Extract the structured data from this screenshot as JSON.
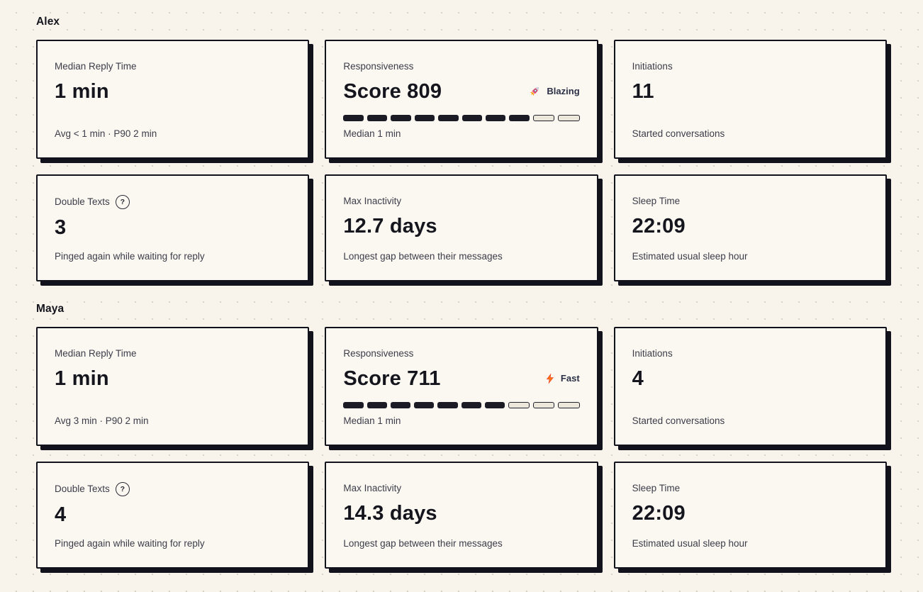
{
  "theme": {
    "page_bg": "#f8f4eb",
    "dot_color": "#d7d3c7",
    "card_bg": "#fbf8f1",
    "ink": "#15151e",
    "muted": "#3c3c49",
    "border_shadow": "#12121c",
    "rocket_icon_color": "#e8507a",
    "lightning_icon_color": "#f97316",
    "help_glyph": "?"
  },
  "sections": [
    {
      "name": "Alex",
      "cards": {
        "median_reply": {
          "label": "Median Reply Time",
          "value": "1 min",
          "subtext": "Avg < 1 min · P90 2 min"
        },
        "responsiveness": {
          "label": "Responsiveness",
          "value": "Score 809",
          "badge": {
            "icon": "rocket-icon",
            "label": "Blazing"
          },
          "segments": {
            "total": 10,
            "filled": 8
          },
          "subtext": "Median 1 min"
        },
        "initiations": {
          "label": "Initiations",
          "value": "11",
          "subtext": "Started conversations"
        },
        "double_texts": {
          "label": "Double Texts",
          "value": "3",
          "subtext": "Pinged again while waiting for reply"
        },
        "max_inactivity": {
          "label": "Max Inactivity",
          "value": "12.7 days",
          "subtext": "Longest gap between their messages"
        },
        "sleep_time": {
          "label": "Sleep Time",
          "value": "22:09",
          "subtext": "Estimated usual sleep hour"
        }
      }
    },
    {
      "name": "Maya",
      "cards": {
        "median_reply": {
          "label": "Median Reply Time",
          "value": "1 min",
          "subtext": "Avg 3 min · P90 2 min"
        },
        "responsiveness": {
          "label": "Responsiveness",
          "value": "Score 711",
          "badge": {
            "icon": "lightning-icon",
            "label": "Fast"
          },
          "segments": {
            "total": 10,
            "filled": 7
          },
          "subtext": "Median 1 min"
        },
        "initiations": {
          "label": "Initiations",
          "value": "4",
          "subtext": "Started conversations"
        },
        "double_texts": {
          "label": "Double Texts",
          "value": "4",
          "subtext": "Pinged again while waiting for reply"
        },
        "max_inactivity": {
          "label": "Max Inactivity",
          "value": "14.3 days",
          "subtext": "Longest gap between their messages"
        },
        "sleep_time": {
          "label": "Sleep Time",
          "value": "22:09",
          "subtext": "Estimated usual sleep hour"
        }
      }
    }
  ]
}
